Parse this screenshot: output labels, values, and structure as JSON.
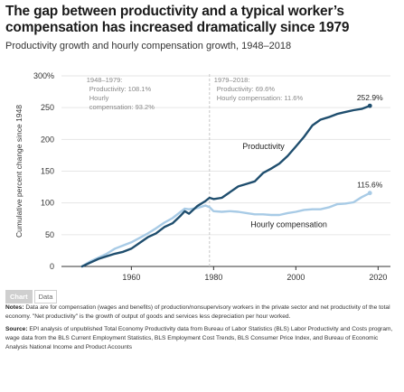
{
  "title": "The gap between productivity and a typical worker’s compensation has increased dramatically since 1979",
  "subtitle": "Productivity growth and hourly compensation growth, 1948–2018",
  "tabs": [
    "Chart",
    "Data"
  ],
  "notes_label": "Notes:",
  "notes_text": "Data are for compensation (wages and benefits) of production/nonsupervisory workers in the private sector and net productivity of the total economy. \"Net productivity\" is the growth of output of goods and services less depreciation per hour worked.",
  "source_label": "Source:",
  "source_text": "EPI analysis of unpublished Total Economy Productivity data from Bureau of Labor Statistics (BLS) Labor Productivity and Costs program, wage data from the BLS Current Employment Statistics, BLS Employment Cost Trends, BLS Consumer Price Index, and Bureau of Economic Analysis National Income and Product Accounts",
  "chart_data": {
    "type": "line",
    "title": "The gap between productivity and a typical worker’s compensation has increased dramatically since 1979",
    "subtitle": "Productivity growth and hourly compensation growth, 1948–2018",
    "ylabel": "Cumulative percent change since 1948",
    "xlabel": "",
    "xlim": [
      1943,
      2023
    ],
    "ylim": [
      0,
      300
    ],
    "x_ticks": [
      "1960",
      "1980",
      "2000",
      "2020"
    ],
    "x_tick_values": [
      1960,
      1980,
      2000,
      2020
    ],
    "y_ticks": [
      "0",
      "50",
      "100",
      "150",
      "200",
      "250",
      "300%"
    ],
    "y_tick_values": [
      0,
      50,
      100,
      150,
      200,
      250,
      300
    ],
    "grid": "horizontal",
    "colors": {
      "productivity": "#1f4e6e",
      "compensation": "#a8cbe6",
      "axis": "#333333",
      "grid": "#e6e6e6",
      "divider": "#c8c8c8"
    },
    "divider_year": 1979,
    "annotations": [
      {
        "year": 1948,
        "lines": [
          "1948–1979:",
          "Productivity: 108.1%",
          "Hourly",
          "compensation: 93.2%"
        ]
      },
      {
        "year": 1979,
        "lines": [
          "1979–2018:",
          "Productivity: 69.6%",
          "Hourly compensation: 11.6%"
        ]
      }
    ],
    "series": [
      {
        "name": "Productivity",
        "end_label": "252.9%",
        "x": [
          1948,
          1950,
          1952,
          1954,
          1956,
          1958,
          1960,
          1962,
          1964,
          1966,
          1968,
          1970,
          1972,
          1973,
          1974,
          1976,
          1978,
          1979,
          1980,
          1982,
          1984,
          1986,
          1988,
          1990,
          1992,
          1994,
          1996,
          1998,
          2000,
          2002,
          2004,
          2006,
          2008,
          2010,
          2012,
          2014,
          2016,
          2018
        ],
        "values": [
          0,
          6,
          12,
          16,
          20,
          23,
          28,
          37,
          46,
          52,
          62,
          68,
          80,
          87,
          83,
          95,
          103,
          108.1,
          106,
          108,
          117,
          126,
          130,
          134,
          147,
          154,
          162,
          174,
          189,
          204,
          222,
          231,
          235,
          240,
          243,
          246,
          248,
          252.9
        ]
      },
      {
        "name": "Hourly compensation",
        "end_label": "115.6%",
        "x": [
          1948,
          1950,
          1952,
          1954,
          1956,
          1958,
          1960,
          1962,
          1964,
          1966,
          1968,
          1970,
          1972,
          1973,
          1974,
          1976,
          1978,
          1979,
          1980,
          1982,
          1984,
          1986,
          1988,
          1990,
          1992,
          1994,
          1996,
          1998,
          2000,
          2002,
          2004,
          2006,
          2008,
          2010,
          2012,
          2014,
          2016,
          2018
        ],
        "values": [
          0,
          8,
          14,
          20,
          28,
          33,
          38,
          45,
          52,
          60,
          69,
          76,
          86,
          91,
          90,
          92,
          96,
          93.2,
          87,
          86,
          87,
          86,
          84,
          82,
          82,
          81,
          81,
          84,
          86,
          89,
          90,
          90,
          93,
          98,
          99,
          101,
          109,
          115.6
        ]
      }
    ]
  }
}
